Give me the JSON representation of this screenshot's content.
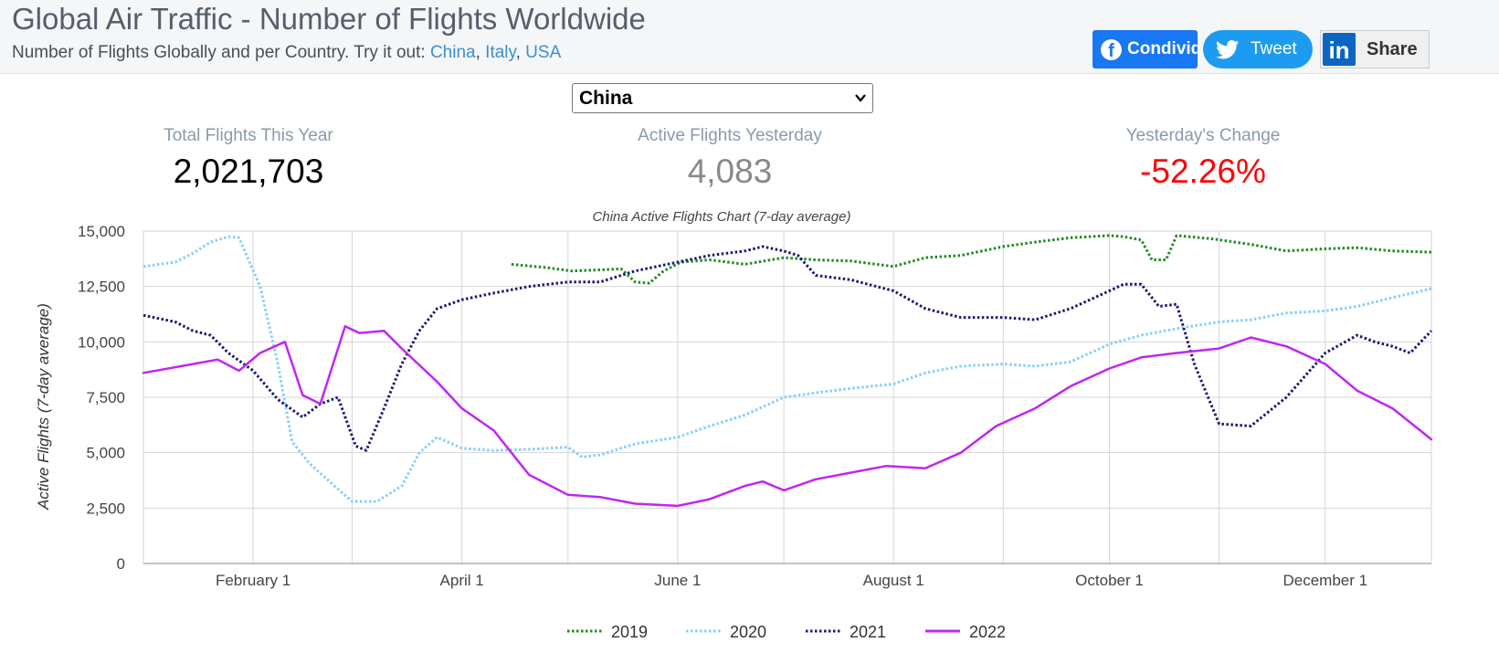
{
  "header": {
    "title": "Global Air Traffic - Number of Flights Worldwide",
    "subtitle_prefix": "Number of Flights Globally and per Country. Try it out:",
    "links": [
      "China",
      "Italy",
      "USA"
    ],
    "sep1": ", ",
    "sep2": ", "
  },
  "share": {
    "facebook_label": "Condividi",
    "twitter_label": "Tweet",
    "linkedin_label": "Share",
    "linkedin_glyph": "in",
    "facebook_glyph": "f",
    "facebook_icon": "facebook-icon",
    "twitter_icon": "twitter-icon",
    "linkedin_icon": "linkedin-icon"
  },
  "selector": {
    "value": "China",
    "icon": "chevron-down-icon"
  },
  "stats": [
    {
      "label": "Total Flights This Year",
      "value": "2,021,703",
      "color": "#000000"
    },
    {
      "label": "Active Flights Yesterday",
      "value": "4,083",
      "color": "#888888"
    },
    {
      "label": "Yesterday's Change",
      "value": "-52.26%",
      "color": "#ff0000"
    }
  ],
  "chart_data": {
    "type": "line",
    "title": "China Active Flights Chart (7-day average)",
    "xlabel": "",
    "ylabel": "Active Flights (7-day average)",
    "ylim": [
      0,
      15000
    ],
    "xlim": [
      "Jan 1",
      "Dec 31"
    ],
    "yticks": [
      "0",
      "2,500",
      "5,000",
      "7,500",
      "10,000",
      "12,500",
      "15,000"
    ],
    "xticks": [
      "February 1",
      "April 1",
      "June 1",
      "August 1",
      "October 1",
      "December 1"
    ],
    "grid": true,
    "legend_position": "bottom",
    "series": [
      {
        "name": "2019",
        "color": "#228b22",
        "style": "dotted",
        "points": [
          [
            "Apr 15",
            13500
          ],
          [
            "Apr 25",
            13350
          ],
          [
            "May 2",
            13200
          ],
          [
            "May 10",
            13250
          ],
          [
            "May 16",
            13300
          ],
          [
            "May 20",
            12700
          ],
          [
            "May 24",
            12650
          ],
          [
            "May 28",
            13200
          ],
          [
            "Jun 2",
            13600
          ],
          [
            "Jun 10",
            13700
          ],
          [
            "Jun 20",
            13500
          ],
          [
            "Jul 1",
            13800
          ],
          [
            "Jul 10",
            13700
          ],
          [
            "Jul 20",
            13650
          ],
          [
            "Aug 1",
            13400
          ],
          [
            "Aug 10",
            13800
          ],
          [
            "Aug 20",
            13900
          ],
          [
            "Sep 1",
            14300
          ],
          [
            "Sep 10",
            14500
          ],
          [
            "Sep 20",
            14700
          ],
          [
            "Oct 1",
            14800
          ],
          [
            "Oct 5",
            14750
          ],
          [
            "Oct 10",
            14600
          ],
          [
            "Oct 13",
            13700
          ],
          [
            "Oct 17",
            13700
          ],
          [
            "Oct 20",
            14800
          ],
          [
            "Oct 30",
            14650
          ],
          [
            "Nov 10",
            14400
          ],
          [
            "Nov 20",
            14100
          ],
          [
            "Dec 1",
            14200
          ],
          [
            "Dec 10",
            14250
          ],
          [
            "Dec 20",
            14100
          ],
          [
            "Dec 31",
            14050
          ]
        ]
      },
      {
        "name": "2020",
        "color": "#87cefa",
        "style": "dotted",
        "points": [
          [
            "Jan 1",
            13400
          ],
          [
            "Jan 10",
            13600
          ],
          [
            "Jan 15",
            14000
          ],
          [
            "Jan 20",
            14500
          ],
          [
            "Jan 25",
            14750
          ],
          [
            "Jan 28",
            14700
          ],
          [
            "Feb 3",
            12500
          ],
          [
            "Feb 8",
            9000
          ],
          [
            "Feb 12",
            5500
          ],
          [
            "Feb 17",
            4500
          ],
          [
            "Feb 24",
            3500
          ],
          [
            "Mar 1",
            2800
          ],
          [
            "Mar 8",
            2800
          ],
          [
            "Mar 15",
            3500
          ],
          [
            "Mar 20",
            5000
          ],
          [
            "Mar 25",
            5700
          ],
          [
            "Apr 1",
            5200
          ],
          [
            "Apr 10",
            5100
          ],
          [
            "Apr 20",
            5150
          ],
          [
            "May 1",
            5250
          ],
          [
            "May 5",
            4800
          ],
          [
            "May 10",
            4900
          ],
          [
            "May 20",
            5400
          ],
          [
            "Jun 1",
            5700
          ],
          [
            "Jun 10",
            6200
          ],
          [
            "Jun 20",
            6700
          ],
          [
            "Jul 1",
            7500
          ],
          [
            "Jul 10",
            7700
          ],
          [
            "Jul 20",
            7900
          ],
          [
            "Aug 1",
            8100
          ],
          [
            "Aug 10",
            8600
          ],
          [
            "Aug 20",
            8900
          ],
          [
            "Sep 1",
            9000
          ],
          [
            "Sep 10",
            8900
          ],
          [
            "Sep 20",
            9100
          ],
          [
            "Oct 1",
            9900
          ],
          [
            "Oct 10",
            10300
          ],
          [
            "Oct 20",
            10600
          ],
          [
            "Nov 1",
            10900
          ],
          [
            "Nov 10",
            11000
          ],
          [
            "Nov 20",
            11300
          ],
          [
            "Dec 1",
            11400
          ],
          [
            "Dec 10",
            11600
          ],
          [
            "Dec 20",
            12000
          ],
          [
            "Dec 31",
            12400
          ]
        ]
      },
      {
        "name": "2021",
        "color": "#1a1a6e",
        "style": "dotted",
        "points": [
          [
            "Jan 1",
            11200
          ],
          [
            "Jan 10",
            10900
          ],
          [
            "Jan 15",
            10500
          ],
          [
            "Jan 20",
            10300
          ],
          [
            "Jan 25",
            9500
          ],
          [
            "Feb 1",
            8700
          ],
          [
            "Feb 8",
            7400
          ],
          [
            "Feb 15",
            6600
          ],
          [
            "Feb 20",
            7200
          ],
          [
            "Feb 25",
            7500
          ],
          [
            "Mar 2",
            5300
          ],
          [
            "Mar 5",
            5100
          ],
          [
            "Mar 10",
            7000
          ],
          [
            "Mar 15",
            9000
          ],
          [
            "Mar 20",
            10500
          ],
          [
            "Mar 25",
            11500
          ],
          [
            "Apr 1",
            11900
          ],
          [
            "Apr 10",
            12200
          ],
          [
            "Apr 20",
            12500
          ],
          [
            "May 1",
            12700
          ],
          [
            "May 10",
            12700
          ],
          [
            "May 20",
            13200
          ],
          [
            "Jun 1",
            13600
          ],
          [
            "Jun 10",
            13900
          ],
          [
            "Jun 20",
            14100
          ],
          [
            "Jun 25",
            14300
          ],
          [
            "Jul 1",
            14100
          ],
          [
            "Jul 5",
            13900
          ],
          [
            "Jul 10",
            13000
          ],
          [
            "Jul 20",
            12800
          ],
          [
            "Aug 1",
            12300
          ],
          [
            "Aug 10",
            11500
          ],
          [
            "Aug 20",
            11100
          ],
          [
            "Sep 1",
            11100
          ],
          [
            "Sep 10",
            11000
          ],
          [
            "Sep 20",
            11500
          ],
          [
            "Oct 1",
            12300
          ],
          [
            "Oct 5",
            12600
          ],
          [
            "Oct 10",
            12600
          ],
          [
            "Oct 15",
            11600
          ],
          [
            "Oct 20",
            11700
          ],
          [
            "Oct 25",
            9000
          ],
          [
            "Nov 1",
            6300
          ],
          [
            "Nov 10",
            6200
          ],
          [
            "Nov 20",
            7500
          ],
          [
            "Dec 1",
            9500
          ],
          [
            "Dec 10",
            10300
          ],
          [
            "Dec 15",
            10000
          ],
          [
            "Dec 20",
            9800
          ],
          [
            "Dec 25",
            9500
          ],
          [
            "Dec 31",
            10500
          ]
        ]
      },
      {
        "name": "2022",
        "color": "#c026f2",
        "style": "solid",
        "points": [
          [
            "Jan 1",
            8600
          ],
          [
            "Jan 8",
            8800
          ],
          [
            "Jan 15",
            9000
          ],
          [
            "Jan 22",
            9200
          ],
          [
            "Jan 28",
            8700
          ],
          [
            "Feb 3",
            9500
          ],
          [
            "Feb 10",
            10000
          ],
          [
            "Feb 15",
            7600
          ],
          [
            "Feb 20",
            7200
          ],
          [
            "Feb 27",
            10700
          ],
          [
            "Mar 3",
            10400
          ],
          [
            "Mar 10",
            10500
          ],
          [
            "Mar 15",
            9700
          ],
          [
            "Mar 25",
            8200
          ],
          [
            "Apr 1",
            7000
          ],
          [
            "Apr 10",
            6000
          ],
          [
            "Apr 20",
            4000
          ],
          [
            "May 1",
            3100
          ],
          [
            "May 10",
            3000
          ],
          [
            "May 20",
            2700
          ],
          [
            "Jun 1",
            2600
          ],
          [
            "Jun 10",
            2900
          ],
          [
            "Jun 20",
            3500
          ],
          [
            "Jun 25",
            3700
          ],
          [
            "Jul 1",
            3300
          ],
          [
            "Jul 10",
            3800
          ],
          [
            "Jul 20",
            4100
          ],
          [
            "Jul 30",
            4400
          ],
          [
            "Aug 10",
            4300
          ],
          [
            "Aug 20",
            5000
          ],
          [
            "Aug 30",
            6200
          ],
          [
            "Sep 10",
            7000
          ],
          [
            "Sep 20",
            8000
          ],
          [
            "Oct 1",
            8800
          ],
          [
            "Oct 10",
            9300
          ],
          [
            "Oct 20",
            9500
          ],
          [
            "Nov 1",
            9700
          ],
          [
            "Nov 10",
            10200
          ],
          [
            "Nov 20",
            9800
          ],
          [
            "Dec 1",
            9000
          ],
          [
            "Dec 10",
            7800
          ],
          [
            "Dec 20",
            7000
          ],
          [
            "Dec 31",
            5600
          ]
        ]
      }
    ]
  }
}
